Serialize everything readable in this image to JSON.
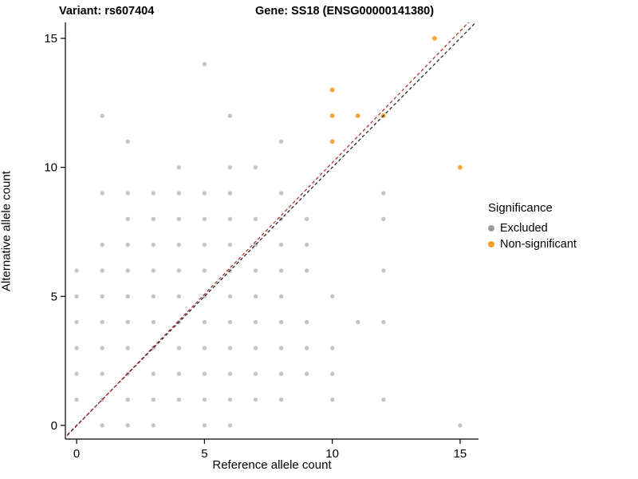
{
  "titles": {
    "variant": "Variant: rs607404",
    "gene": "Gene: SS18 (ENSG00000141380)"
  },
  "axes": {
    "x_label": "Reference allele count",
    "y_label": "Alternative allele count",
    "x_ticks": [
      0,
      5,
      10,
      15
    ],
    "y_ticks": [
      0,
      5,
      10,
      15
    ],
    "x_range": [
      -0.44,
      15.72
    ],
    "y_range": [
      -0.53,
      15.62
    ]
  },
  "legend": {
    "title": "Significance",
    "items": [
      {
        "label": "Excluded",
        "color": "#9b9b9b"
      },
      {
        "label": "Non-significant",
        "color": "#f8a02c"
      }
    ]
  },
  "colors": {
    "excluded_point": "#8c8c8c",
    "non_significant_point": "#f8a02c",
    "identity_line": "#1a1a1a",
    "fit_line": "#b22222",
    "axis": "#000000"
  },
  "chart_data": {
    "type": "scatter",
    "title": "Variant: rs607404 / Gene: SS18 (ENSG00000141380)",
    "xlabel": "Reference allele count",
    "ylabel": "Alternative allele count",
    "xlim": [
      -0.44,
      15.72
    ],
    "ylim": [
      -0.53,
      15.62
    ],
    "grid": false,
    "legend_position": "right",
    "series": [
      {
        "name": "Excluded",
        "color": "#8c8c8c",
        "opacity": 0.5,
        "radius": 2.7,
        "points": [
          [
            1,
            0
          ],
          [
            2,
            0
          ],
          [
            3,
            0
          ],
          [
            5,
            0
          ],
          [
            6,
            0
          ],
          [
            15,
            0
          ],
          [
            0,
            1
          ],
          [
            1,
            1
          ],
          [
            2,
            1
          ],
          [
            3,
            1
          ],
          [
            4,
            1
          ],
          [
            5,
            1
          ],
          [
            6,
            1
          ],
          [
            7,
            1
          ],
          [
            8,
            1
          ],
          [
            10,
            1
          ],
          [
            12,
            1
          ],
          [
            0,
            2
          ],
          [
            1,
            2
          ],
          [
            2,
            2
          ],
          [
            3,
            2
          ],
          [
            4,
            2
          ],
          [
            5,
            2
          ],
          [
            6,
            2
          ],
          [
            7,
            2
          ],
          [
            8,
            2
          ],
          [
            9,
            2
          ],
          [
            10,
            2
          ],
          [
            0,
            3
          ],
          [
            1,
            3
          ],
          [
            2,
            3
          ],
          [
            3,
            3
          ],
          [
            4,
            3
          ],
          [
            5,
            3
          ],
          [
            6,
            3
          ],
          [
            7,
            3
          ],
          [
            8,
            3
          ],
          [
            9,
            3
          ],
          [
            10,
            3
          ],
          [
            0,
            4
          ],
          [
            1,
            4
          ],
          [
            2,
            4
          ],
          [
            3,
            4
          ],
          [
            4,
            4
          ],
          [
            5,
            4
          ],
          [
            6,
            4
          ],
          [
            7,
            4
          ],
          [
            8,
            4
          ],
          [
            9,
            4
          ],
          [
            11,
            4
          ],
          [
            12,
            4
          ],
          [
            0,
            5
          ],
          [
            1,
            5
          ],
          [
            2,
            5
          ],
          [
            3,
            5
          ],
          [
            4,
            5
          ],
          [
            5,
            5
          ],
          [
            6,
            5
          ],
          [
            7,
            5
          ],
          [
            8,
            5
          ],
          [
            10,
            5
          ],
          [
            0,
            6
          ],
          [
            1,
            6
          ],
          [
            2,
            6
          ],
          [
            3,
            6
          ],
          [
            4,
            6
          ],
          [
            5,
            6
          ],
          [
            6,
            6
          ],
          [
            7,
            6
          ],
          [
            8,
            6
          ],
          [
            9,
            6
          ],
          [
            12,
            6
          ],
          [
            1,
            7
          ],
          [
            2,
            7
          ],
          [
            3,
            7
          ],
          [
            4,
            7
          ],
          [
            5,
            7
          ],
          [
            6,
            7
          ],
          [
            7,
            7
          ],
          [
            8,
            7
          ],
          [
            9,
            7
          ],
          [
            2,
            8
          ],
          [
            3,
            8
          ],
          [
            4,
            8
          ],
          [
            5,
            8
          ],
          [
            6,
            8
          ],
          [
            7,
            8
          ],
          [
            8,
            8
          ],
          [
            9,
            8
          ],
          [
            12,
            8
          ],
          [
            1,
            9
          ],
          [
            2,
            9
          ],
          [
            3,
            9
          ],
          [
            4,
            9
          ],
          [
            5,
            9
          ],
          [
            6,
            9
          ],
          [
            8,
            9
          ],
          [
            12,
            9
          ],
          [
            4,
            10
          ],
          [
            6,
            10
          ],
          [
            7,
            10
          ],
          [
            2,
            11
          ],
          [
            8,
            11
          ],
          [
            1,
            12
          ],
          [
            6,
            12
          ],
          [
            5,
            14
          ]
        ]
      },
      {
        "name": "Non-significant",
        "color": "#f8a02c",
        "opacity": 0.95,
        "radius": 2.9,
        "points": [
          [
            10,
            11
          ],
          [
            10,
            12
          ],
          [
            11,
            12
          ],
          [
            12,
            12
          ],
          [
            10,
            13
          ],
          [
            14,
            15
          ],
          [
            15,
            10
          ]
        ]
      }
    ],
    "lines": [
      {
        "name": "identity",
        "slope": 1.0,
        "intercept": 0.0,
        "color": "#1a1a1a",
        "dash": "4 3",
        "width": 1.2
      },
      {
        "name": "fit",
        "slope": 1.02,
        "intercept": -0.02,
        "color": "#b22222",
        "dash": "4 3",
        "width": 1.2
      }
    ]
  }
}
